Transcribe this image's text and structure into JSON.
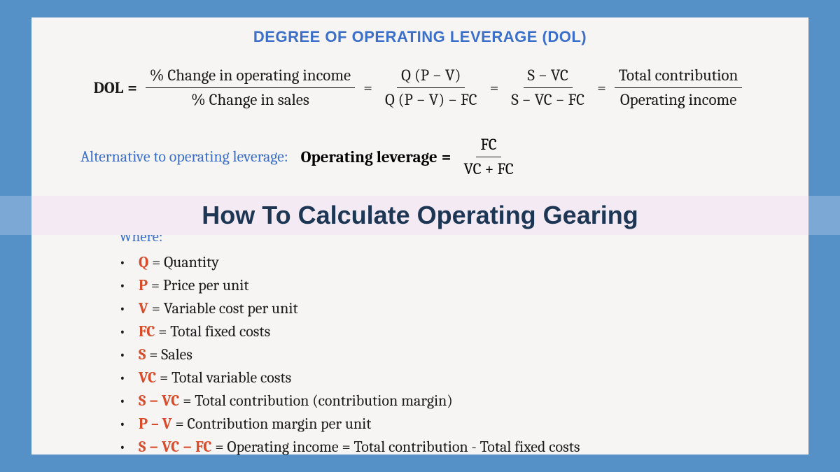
{
  "colors": {
    "page_bg": "#5591c6",
    "panel_bg": "#f7f4f4",
    "title_color": "#3b6fc9",
    "text_color": "#1a1a1a",
    "symbol_color": "#d84c2a",
    "overlay_bg": "#f4eaf3",
    "overlay_side": "#7ba8d4",
    "overlay_text": "#1c3654"
  },
  "title": "DEGREE OF OPERATING LEVERAGE (DOL)",
  "main_formula": {
    "lhs": "DOL",
    "eq": "=",
    "f1": {
      "num": "% Change in operating income",
      "den": "% Change in sales"
    },
    "f2": {
      "num": "Q (P − V)",
      "den": "Q (P − V)  − FC"
    },
    "f3": {
      "num": "S  − VC",
      "den": "S  − VC − FC"
    },
    "f4": {
      "num": "Total contribution",
      "den": "Operating income"
    }
  },
  "alt": {
    "label": "Alternative to operating leverage:",
    "lhs": "Operating leverage",
    "eq": "=",
    "frac": {
      "num": "FC",
      "den": "VC +  FC"
    }
  },
  "overlay_title": "How To Calculate Operating Gearing",
  "where_label": "Where:",
  "defs": [
    {
      "sym": "Q",
      "desc": " = Quantity"
    },
    {
      "sym": "P",
      "desc": " = Price per unit"
    },
    {
      "sym": "V",
      "desc": " = Variable cost per unit"
    },
    {
      "sym": "FC",
      "desc": " = Total fixed costs"
    },
    {
      "sym": "S",
      "desc": " = Sales"
    },
    {
      "sym": "VC",
      "desc": " = Total variable costs"
    },
    {
      "sym": "S  − VC",
      "desc": " = Total contribution (contribution margin)"
    },
    {
      "sym": "P – V",
      "desc": " = Contribution margin per unit"
    },
    {
      "sym": "S  − VC − FC",
      "desc": " = Operating income  = Total contribution - Total fixed costs"
    }
  ]
}
